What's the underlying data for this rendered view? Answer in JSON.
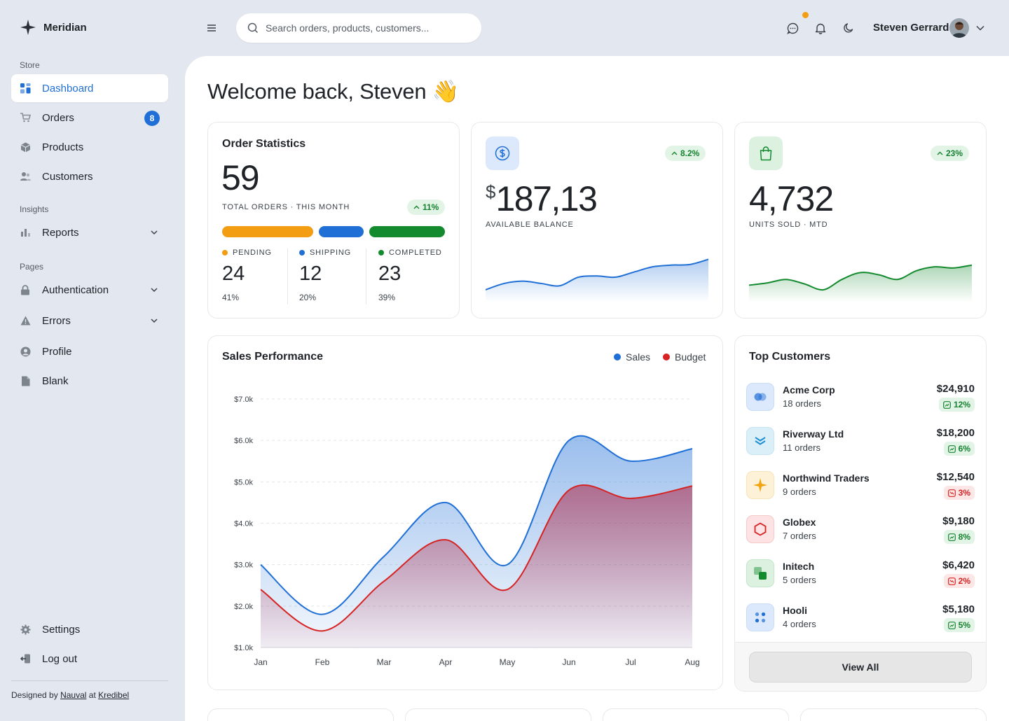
{
  "brand": {
    "name": "Meridian"
  },
  "sidebar": {
    "sections": {
      "store": "Store",
      "insights": "Insights",
      "pages": "Pages"
    },
    "items": [
      {
        "label": "Dashboard",
        "icon": "grid-icon"
      },
      {
        "label": "Orders",
        "icon": "cart-icon",
        "badge": "8"
      },
      {
        "label": "Products",
        "icon": "box-icon"
      },
      {
        "label": "Customers",
        "icon": "users-icon"
      },
      {
        "label": "Reports",
        "icon": "bar-chart-icon"
      },
      {
        "label": "Authentication",
        "icon": "lock-icon"
      },
      {
        "label": "Errors",
        "icon": "warning-icon"
      },
      {
        "label": "Profile",
        "icon": "user-circle-icon"
      },
      {
        "label": "Blank",
        "icon": "file-icon"
      },
      {
        "label": "Settings",
        "icon": "gear-icon"
      },
      {
        "label": "Log out",
        "icon": "logout-icon"
      }
    ],
    "credits": {
      "prefix": "Designed by",
      "author": "Nauval",
      "at": "at",
      "company": "Kredibel"
    }
  },
  "header": {
    "search_placeholder": "Search orders, products, customers...",
    "user_name": "Steven Gerrard"
  },
  "welcome": {
    "text": "Welcome back, Steven",
    "emoji": "👋"
  },
  "order_stats": {
    "title": "Order Statistics",
    "total": "59",
    "total_label": "TOTAL ORDERS · THIS MONTH",
    "change": "11%",
    "breakdown": [
      {
        "label": "PENDING",
        "value": "24",
        "pct": "41%",
        "color": "#f29d12"
      },
      {
        "label": "SHIPPING",
        "value": "12",
        "pct": "20%",
        "color": "#1f6fd6"
      },
      {
        "label": "COMPLETED",
        "value": "23",
        "pct": "39%",
        "color": "#138a2d"
      }
    ]
  },
  "balance": {
    "currency": "$",
    "value": "187,13",
    "label": "AVAILABLE BALANCE",
    "change": "8.2%",
    "color": "#1f6fd6",
    "spark": [
      22,
      33,
      37,
      33,
      29,
      44,
      46,
      44,
      53,
      62,
      65,
      66,
      75
    ]
  },
  "units": {
    "value": "4,732",
    "label": "UNITS SOLD · MTD",
    "change": "23%",
    "color": "#138a2d",
    "spark": [
      30,
      34,
      40,
      32,
      22,
      40,
      52,
      48,
      40,
      55,
      62,
      60,
      65
    ]
  },
  "sales": {
    "title": "Sales Performance",
    "legend": {
      "sales": "Sales",
      "budget": "Budget"
    }
  },
  "chart_data": {
    "type": "area",
    "title": "Sales Performance",
    "categories": [
      "Jan",
      "Feb",
      "Mar",
      "Apr",
      "May",
      "Jun",
      "Jul",
      "Aug"
    ],
    "series": [
      {
        "name": "Sales",
        "color": "#1f6fd6",
        "values": [
          3.0,
          1.8,
          3.2,
          4.5,
          3.0,
          6.0,
          5.5,
          5.8
        ]
      },
      {
        "name": "Budget",
        "color": "#d62323",
        "values": [
          2.4,
          1.4,
          2.6,
          3.6,
          2.4,
          4.8,
          4.6,
          4.9
        ]
      }
    ],
    "y_ticks": [
      "$1.0k",
      "$2.0k",
      "$3.0k",
      "$4.0k",
      "$5.0k",
      "$6.0k",
      "$7.0k"
    ],
    "ylim": [
      1.0,
      7.0
    ],
    "grid": true,
    "legend_position": "top-right"
  },
  "customers": {
    "title": "Top Customers",
    "view_all": "View All",
    "rows": [
      {
        "name": "Acme Corp",
        "orders": "18 orders",
        "amount": "$24,910",
        "change": "12%",
        "trend": "up",
        "icon": "acme-logo-icon",
        "tile": "#dce8fb"
      },
      {
        "name": "Riverway Ltd",
        "orders": "11 orders",
        "amount": "$18,200",
        "change": "6%",
        "trend": "up",
        "icon": "riverway-logo-icon",
        "tile": "#dbeff8"
      },
      {
        "name": "Northwind Traders",
        "orders": "9 orders",
        "amount": "$12,540",
        "change": "3%",
        "trend": "down",
        "icon": "northwind-logo-icon",
        "tile": "#fdf1d8"
      },
      {
        "name": "Globex",
        "orders": "7 orders",
        "amount": "$9,180",
        "change": "8%",
        "trend": "up",
        "icon": "globex-logo-icon",
        "tile": "#fde3e3"
      },
      {
        "name": "Initech",
        "orders": "5 orders",
        "amount": "$6,420",
        "change": "2%",
        "trend": "down",
        "icon": "initech-logo-icon",
        "tile": "#dcf1e0"
      },
      {
        "name": "Hooli",
        "orders": "4 orders",
        "amount": "$5,180",
        "change": "5%",
        "trend": "up",
        "icon": "hooli-logo-icon",
        "tile": "#dce8fb"
      }
    ]
  }
}
